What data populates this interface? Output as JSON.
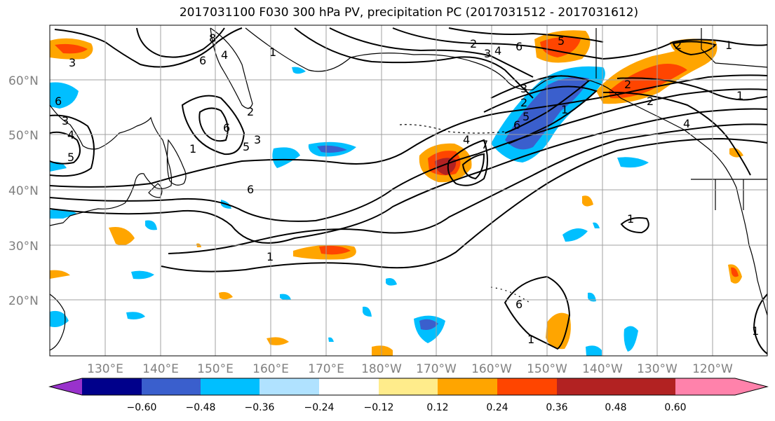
{
  "title": "2017031100 F030 300 hPa PV, precipitation PC (2017031512 - 2017031612)",
  "lat_labels": [
    "60°N",
    "50°N",
    "40°N",
    "30°N",
    "20°N"
  ],
  "lon_labels": [
    "130°E",
    "140°E",
    "150°E",
    "160°E",
    "170°E",
    "180°W",
    "170°W",
    "160°W",
    "150°W",
    "140°W",
    "130°W",
    "120°W"
  ],
  "colorbar": {
    "ticks": [
      "−0.60",
      "−0.48",
      "−0.36",
      "−0.24",
      "−0.12",
      "0.12",
      "0.24",
      "0.36",
      "0.48",
      "0.60"
    ],
    "colors": [
      "#9932cc",
      "#00008b",
      "#3a5fcd",
      "#00bfff",
      "#b0e2ff",
      "#ffffff",
      "#ffec8b",
      "#ffa500",
      "#ff4500",
      "#b22222",
      "#ff82ab"
    ]
  },
  "contour_labels": [
    "3",
    "4",
    "5",
    "3",
    "6",
    "8",
    "6",
    "4",
    "1",
    "6",
    "3",
    "2",
    "5",
    "6",
    "1",
    "1",
    "6",
    "4",
    "5",
    "3",
    "2",
    "7",
    "4",
    "2",
    "6",
    "5",
    "2",
    "1",
    "1",
    "1",
    "1",
    "1",
    "2",
    "2",
    "4",
    "6",
    "1",
    "3"
  ]
}
